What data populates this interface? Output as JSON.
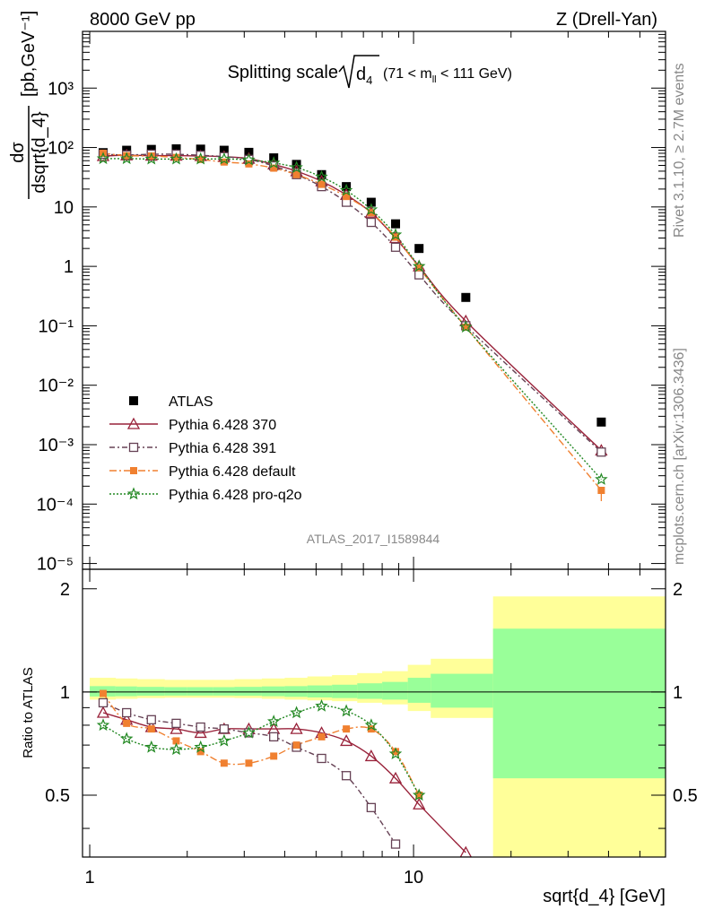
{
  "header": {
    "left": "8000 GeV pp",
    "right": "Z (Drell-Yan)"
  },
  "side_labels": {
    "rivet": "Rivet 3.1.10, ≥ 2.7M events",
    "mcplots": "mcplots.cern.ch [arXiv:1306.3436]"
  },
  "chart_data": [
    {
      "type": "scatter",
      "title": "Splitting scale √d₄ (71 < m_ll < 111 GeV)",
      "title_main": "Splitting scale",
      "title_var": "d",
      "title_sub": "4",
      "title_range": "(71 < m",
      "title_range_sub": "ll",
      "title_range_end": " < 111 GeV)",
      "analysis": "ATLAS_2017_I1589844",
      "ylabel": "dσ/dsqrt{d_4} [pb,GeV⁻¹]",
      "ylabel_num": "dσ",
      "ylabel_den": "dsqrt{d_4}",
      "ylabel_unit": "[pb,GeV⁻¹]",
      "xscale": "log",
      "yscale": "log",
      "xlim": [
        0.95,
        60
      ],
      "ylim": [
        8e-06,
        9000
      ],
      "x_tick_labels": [
        "1",
        "10"
      ],
      "y_tick_labels": [
        "10⁻⁵",
        "10⁻⁴",
        "10⁻³",
        "10⁻²",
        "10⁻¹",
        "1",
        "10",
        "10²",
        "10³"
      ],
      "legend_position": "lower-left",
      "series": [
        {
          "name": "ATLAS",
          "color": "#000000",
          "marker": "filled-square",
          "x": [
            1.1,
            1.3,
            1.55,
            1.85,
            2.2,
            2.6,
            3.1,
            3.7,
            4.35,
            5.2,
            6.2,
            7.4,
            8.8,
            10.4,
            14.5,
            38
          ],
          "y": [
            82,
            90,
            93,
            95,
            94,
            90,
            83,
            67,
            52,
            35,
            22,
            12,
            5.2,
            2.0,
            0.3,
            0.0024
          ]
        },
        {
          "name": "Pythia 6.428 370",
          "color": "#99223a",
          "marker": "open-triangle",
          "x": [
            1.1,
            1.3,
            1.55,
            1.85,
            2.2,
            2.6,
            3.1,
            3.7,
            4.35,
            5.2,
            6.2,
            7.4,
            8.8,
            10.4,
            14.5,
            38
          ],
          "y": [
            72,
            74,
            73,
            73,
            72,
            70,
            65,
            52,
            40,
            27,
            16,
            8,
            3.0,
            1.0,
            0.12,
            0.0008
          ]
        },
        {
          "name": "Pythia 6.428 391",
          "color": "#664255",
          "marker": "open-square",
          "x": [
            1.1,
            1.3,
            1.55,
            1.85,
            2.2,
            2.6,
            3.1,
            3.7,
            4.35,
            5.2,
            6.2,
            7.4,
            8.8,
            10.4,
            14.5,
            38
          ],
          "y": [
            77,
            75,
            77,
            77,
            74,
            70,
            63,
            49,
            35,
            22,
            12,
            5.5,
            2.1,
            0.72,
            0.1,
            0.00075
          ]
        },
        {
          "name": "Pythia 6.428 default",
          "color": "#f08030",
          "marker": "filled-square-small",
          "x": [
            1.1,
            1.3,
            1.55,
            1.85,
            2.2,
            2.6,
            3.1,
            3.7,
            4.35,
            5.2,
            6.2,
            7.4,
            8.8,
            10.4,
            14.5,
            38
          ],
          "y": [
            80,
            73,
            72,
            68,
            63,
            57,
            53,
            45,
            35,
            24,
            15,
            8,
            3.1,
            0.95,
            0.095,
            0.00017
          ]
        },
        {
          "name": "Pythia 6.428 pro-q2o",
          "color": "#228822",
          "marker": "open-star",
          "x": [
            1.1,
            1.3,
            1.55,
            1.85,
            2.2,
            2.6,
            3.1,
            3.7,
            4.35,
            5.2,
            6.2,
            7.4,
            8.8,
            10.4,
            14.5,
            38
          ],
          "y": [
            65,
            65,
            64,
            64,
            64,
            64,
            62,
            55,
            46,
            32,
            19,
            9,
            3.4,
            1.0,
            0.095,
            0.00026
          ]
        }
      ]
    },
    {
      "type": "line",
      "ylabel": "Ratio to ATLAS",
      "xlabel": "sqrt{d_4} [GeV]",
      "xscale": "log",
      "xlim": [
        0.95,
        60
      ],
      "ylim": [
        0.33,
        2.28
      ],
      "x_tick_labels": [
        "1",
        "10"
      ],
      "y_tick_labels": [
        "0.5",
        "1",
        "2"
      ],
      "reference": 1,
      "bands": {
        "x_edges": [
          1.0,
          1.2,
          1.4,
          1.7,
          2.0,
          2.4,
          2.8,
          3.4,
          4.0,
          4.7,
          5.6,
          6.7,
          8.0,
          9.6,
          11.3,
          17.6,
          60
        ],
        "yellow_lo": [
          0.95,
          0.955,
          0.96,
          0.962,
          0.962,
          0.962,
          0.96,
          0.955,
          0.95,
          0.945,
          0.94,
          0.93,
          0.92,
          0.88,
          0.84,
          0.3
        ],
        "yellow_hi": [
          1.1,
          1.095,
          1.09,
          1.085,
          1.085,
          1.085,
          1.09,
          1.095,
          1.1,
          1.11,
          1.12,
          1.135,
          1.15,
          1.2,
          1.25,
          1.9
        ],
        "green_lo": [
          0.97,
          0.972,
          0.975,
          0.976,
          0.976,
          0.976,
          0.975,
          0.972,
          0.968,
          0.964,
          0.96,
          0.955,
          0.95,
          0.93,
          0.9,
          0.56
        ],
        "green_hi": [
          1.04,
          1.038,
          1.035,
          1.033,
          1.033,
          1.033,
          1.035,
          1.038,
          1.04,
          1.045,
          1.05,
          1.06,
          1.07,
          1.1,
          1.13,
          1.53
        ]
      },
      "series": [
        {
          "name": "Pythia 6.428 370",
          "color": "#99223a",
          "x": [
            1.1,
            1.3,
            1.55,
            1.85,
            2.2,
            2.6,
            3.1,
            3.7,
            4.35,
            5.2,
            6.2,
            7.4,
            8.8,
            10.4,
            14.5
          ],
          "y": [
            0.87,
            0.83,
            0.79,
            0.78,
            0.76,
            0.78,
            0.78,
            0.78,
            0.78,
            0.76,
            0.72,
            0.65,
            0.56,
            0.47,
            0.34
          ]
        },
        {
          "name": "Pythia 6.428 391",
          "color": "#664255",
          "x": [
            1.1,
            1.3,
            1.55,
            1.85,
            2.2,
            2.6,
            3.1,
            3.7,
            4.35,
            5.2,
            6.2,
            7.4,
            8.8
          ],
          "y": [
            0.93,
            0.87,
            0.83,
            0.81,
            0.79,
            0.78,
            0.76,
            0.74,
            0.69,
            0.64,
            0.57,
            0.46,
            0.36
          ]
        },
        {
          "name": "Pythia 6.428 default",
          "color": "#f08030",
          "x": [
            1.1,
            1.3,
            1.55,
            1.85,
            2.2,
            2.6,
            3.1,
            3.7,
            4.35,
            5.2,
            6.2,
            7.4,
            8.8,
            10.4
          ],
          "y": [
            0.99,
            0.81,
            0.78,
            0.72,
            0.67,
            0.62,
            0.62,
            0.65,
            0.7,
            0.74,
            0.78,
            0.78,
            0.67,
            0.5
          ]
        },
        {
          "name": "Pythia 6.428 pro-q2o",
          "color": "#228822",
          "x": [
            1.1,
            1.3,
            1.55,
            1.85,
            2.2,
            2.6,
            3.1,
            3.7,
            4.35,
            5.2,
            6.2,
            7.4,
            8.8,
            10.4
          ],
          "y": [
            0.8,
            0.73,
            0.69,
            0.68,
            0.69,
            0.72,
            0.76,
            0.82,
            0.87,
            0.91,
            0.88,
            0.8,
            0.66,
            0.5
          ]
        }
      ]
    }
  ]
}
